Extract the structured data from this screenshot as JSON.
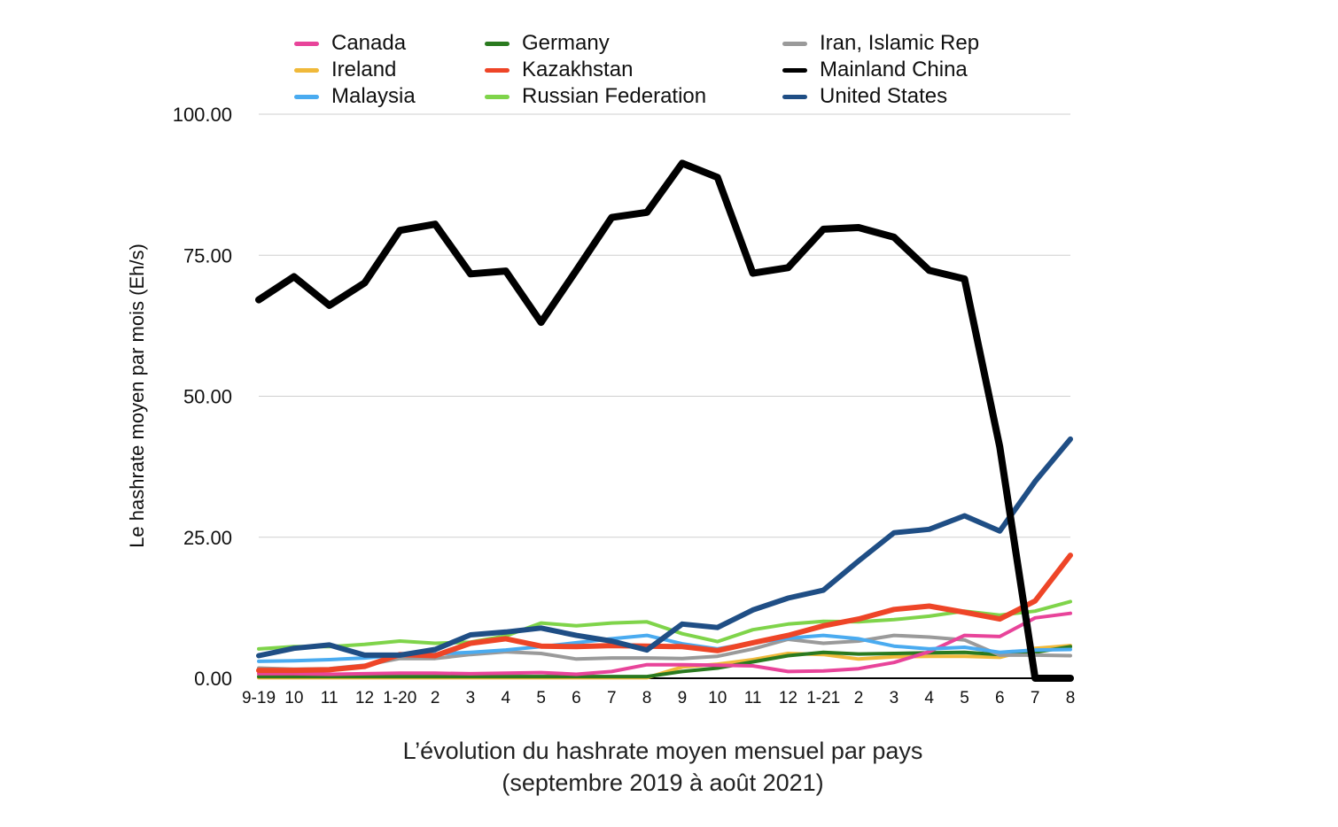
{
  "chart_data": {
    "type": "line",
    "title": "L’évolution du hashrate moyen mensuel par pays",
    "subtitle": "(septembre 2019 à août 2021)",
    "ylabel": "Le hashrate moyen par mois (Eh/s)",
    "xlabel": "",
    "ylim": [
      0,
      100
    ],
    "yticks": [
      "0.00",
      "25.00",
      "50.00",
      "75.00",
      "100.00"
    ],
    "ytick_values": [
      0,
      25,
      50,
      75,
      100
    ],
    "grid": true,
    "legend_position": "top",
    "categories": [
      "9-19",
      "10",
      "11",
      "12",
      "1-20",
      "2",
      "3",
      "4",
      "5",
      "6",
      "7",
      "8",
      "9",
      "10",
      "11",
      "12",
      "1-21",
      "2",
      "3",
      "4",
      "5",
      "6",
      "7",
      "8"
    ],
    "series": [
      {
        "name": "Canada",
        "color": "#e8449a",
        "values": [
          0.8,
          0.8,
          0.7,
          0.8,
          0.9,
          0.9,
          0.8,
          0.9,
          1.0,
          0.7,
          1.2,
          2.4,
          2.4,
          2.3,
          2.2,
          1.2,
          1.3,
          1.7,
          2.8,
          4.7,
          7.6,
          7.4,
          10.7,
          11.5
        ]
      },
      {
        "name": "Germany",
        "color": "#2a7a1f",
        "values": [
          0.3,
          0.3,
          0.3,
          0.3,
          0.3,
          0.3,
          0.3,
          0.3,
          0.3,
          0.3,
          0.3,
          0.3,
          1.2,
          1.8,
          2.9,
          4.0,
          4.6,
          4.3,
          4.4,
          4.5,
          4.6,
          4.2,
          4.6,
          5.6
        ]
      },
      {
        "name": "Iran, Islamic Rep",
        "color": "#9a9a9a",
        "values": [
          1.8,
          1.6,
          1.7,
          2.3,
          3.5,
          3.5,
          4.2,
          4.7,
          4.4,
          3.4,
          3.6,
          3.6,
          3.5,
          3.9,
          5.2,
          6.9,
          6.2,
          6.6,
          7.6,
          7.3,
          6.8,
          4.1,
          4.1,
          4.0
        ]
      },
      {
        "name": "Ireland",
        "color": "#f0b93a",
        "values": [
          0.1,
          0.1,
          0.1,
          0.1,
          0.1,
          0.1,
          0.1,
          0.1,
          0.1,
          0.1,
          0.1,
          0.1,
          2.0,
          2.5,
          3.3,
          4.4,
          4.2,
          3.4,
          3.8,
          3.9,
          3.9,
          3.7,
          5.3,
          5.8
        ]
      },
      {
        "name": "Kazakhstan",
        "color": "#ee4527",
        "values": [
          1.4,
          1.4,
          1.5,
          2.1,
          4.2,
          4.0,
          6.2,
          7.0,
          5.7,
          5.6,
          5.8,
          5.7,
          5.6,
          4.9,
          6.3,
          7.6,
          9.3,
          10.5,
          12.2,
          12.8,
          11.7,
          10.5,
          13.7,
          21.8
        ]
      },
      {
        "name": "Mainland China",
        "color": "#000000",
        "values": [
          67.1,
          71.2,
          66.1,
          70.1,
          79.4,
          80.5,
          71.7,
          72.2,
          63.1,
          72.3,
          81.7,
          82.6,
          91.3,
          88.8,
          71.8,
          72.8,
          79.6,
          79.9,
          78.2,
          72.3,
          70.8,
          41.0,
          0.0,
          0.0
        ]
      },
      {
        "name": "Malaysia",
        "color": "#4aabf0",
        "values": [
          3.0,
          3.1,
          3.3,
          3.6,
          4.1,
          4.3,
          4.6,
          5.0,
          5.6,
          6.3,
          7.0,
          7.6,
          6.1,
          5.2,
          6.3,
          7.1,
          7.6,
          7.0,
          5.7,
          5.2,
          5.5,
          4.6,
          5.0,
          5.1
        ]
      },
      {
        "name": "Russian Federation",
        "color": "#7fd44a",
        "values": [
          5.2,
          5.6,
          5.6,
          6.0,
          6.6,
          6.2,
          6.4,
          7.5,
          9.8,
          9.3,
          9.8,
          10.0,
          7.9,
          6.5,
          8.6,
          9.6,
          10.1,
          10.0,
          10.4,
          11.0,
          11.9,
          11.2,
          11.9,
          13.6
        ]
      },
      {
        "name": "United States",
        "color": "#1f4e85",
        "values": [
          4.0,
          5.3,
          5.9,
          4.1,
          4.1,
          5.1,
          7.7,
          8.2,
          8.9,
          7.6,
          6.6,
          5.0,
          9.6,
          9.0,
          12.1,
          14.2,
          15.6,
          20.8,
          25.8,
          26.4,
          28.8,
          26.1,
          34.9,
          42.4
        ]
      }
    ]
  }
}
